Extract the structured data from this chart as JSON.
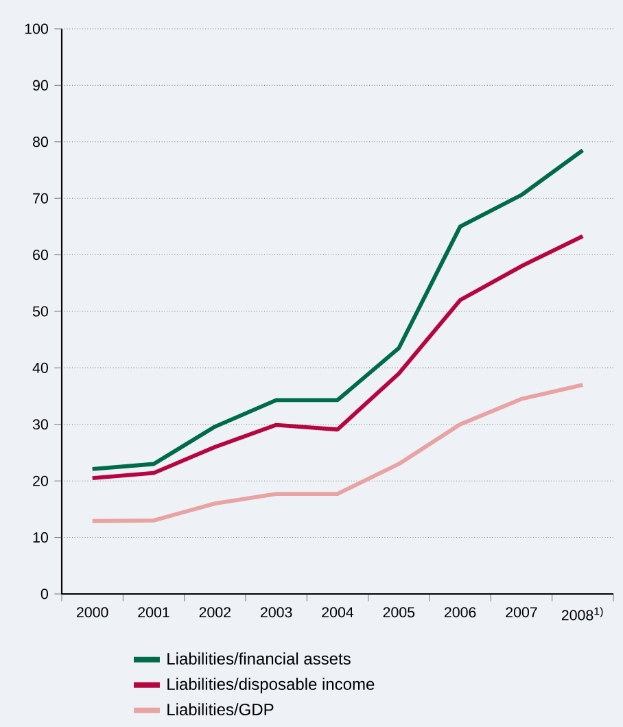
{
  "chart_data": {
    "type": "line",
    "categories": [
      "2000",
      "2001",
      "2002",
      "2003",
      "2004",
      "2005",
      "2006",
      "2007",
      "2008$^{1)}$"
    ],
    "series": [
      {
        "name": "Liabilities/financial assets",
        "color": "#006b47",
        "values": [
          22.1,
          23,
          29.6,
          34.3,
          34.3,
          43.5,
          65,
          70.6,
          78.5
        ]
      },
      {
        "name": "Liabilities/disposable income",
        "color": "#b5063f",
        "values": [
          20.5,
          21.4,
          26,
          29.9,
          29.1,
          39,
          52,
          58,
          63.3
        ]
      },
      {
        "name": "Liabilities/GDP",
        "color": "#e8a3a3",
        "values": [
          12.9,
          13,
          16,
          17.7,
          17.7,
          23,
          30,
          34.5,
          37
        ]
      }
    ],
    "ylim": [
      0,
      100
    ],
    "yticks": [
      0,
      10,
      20,
      30,
      40,
      50,
      60,
      70,
      80,
      90,
      100
    ],
    "grid": "y",
    "legend": "bottom",
    "marker": "none",
    "line_style": "solid"
  }
}
